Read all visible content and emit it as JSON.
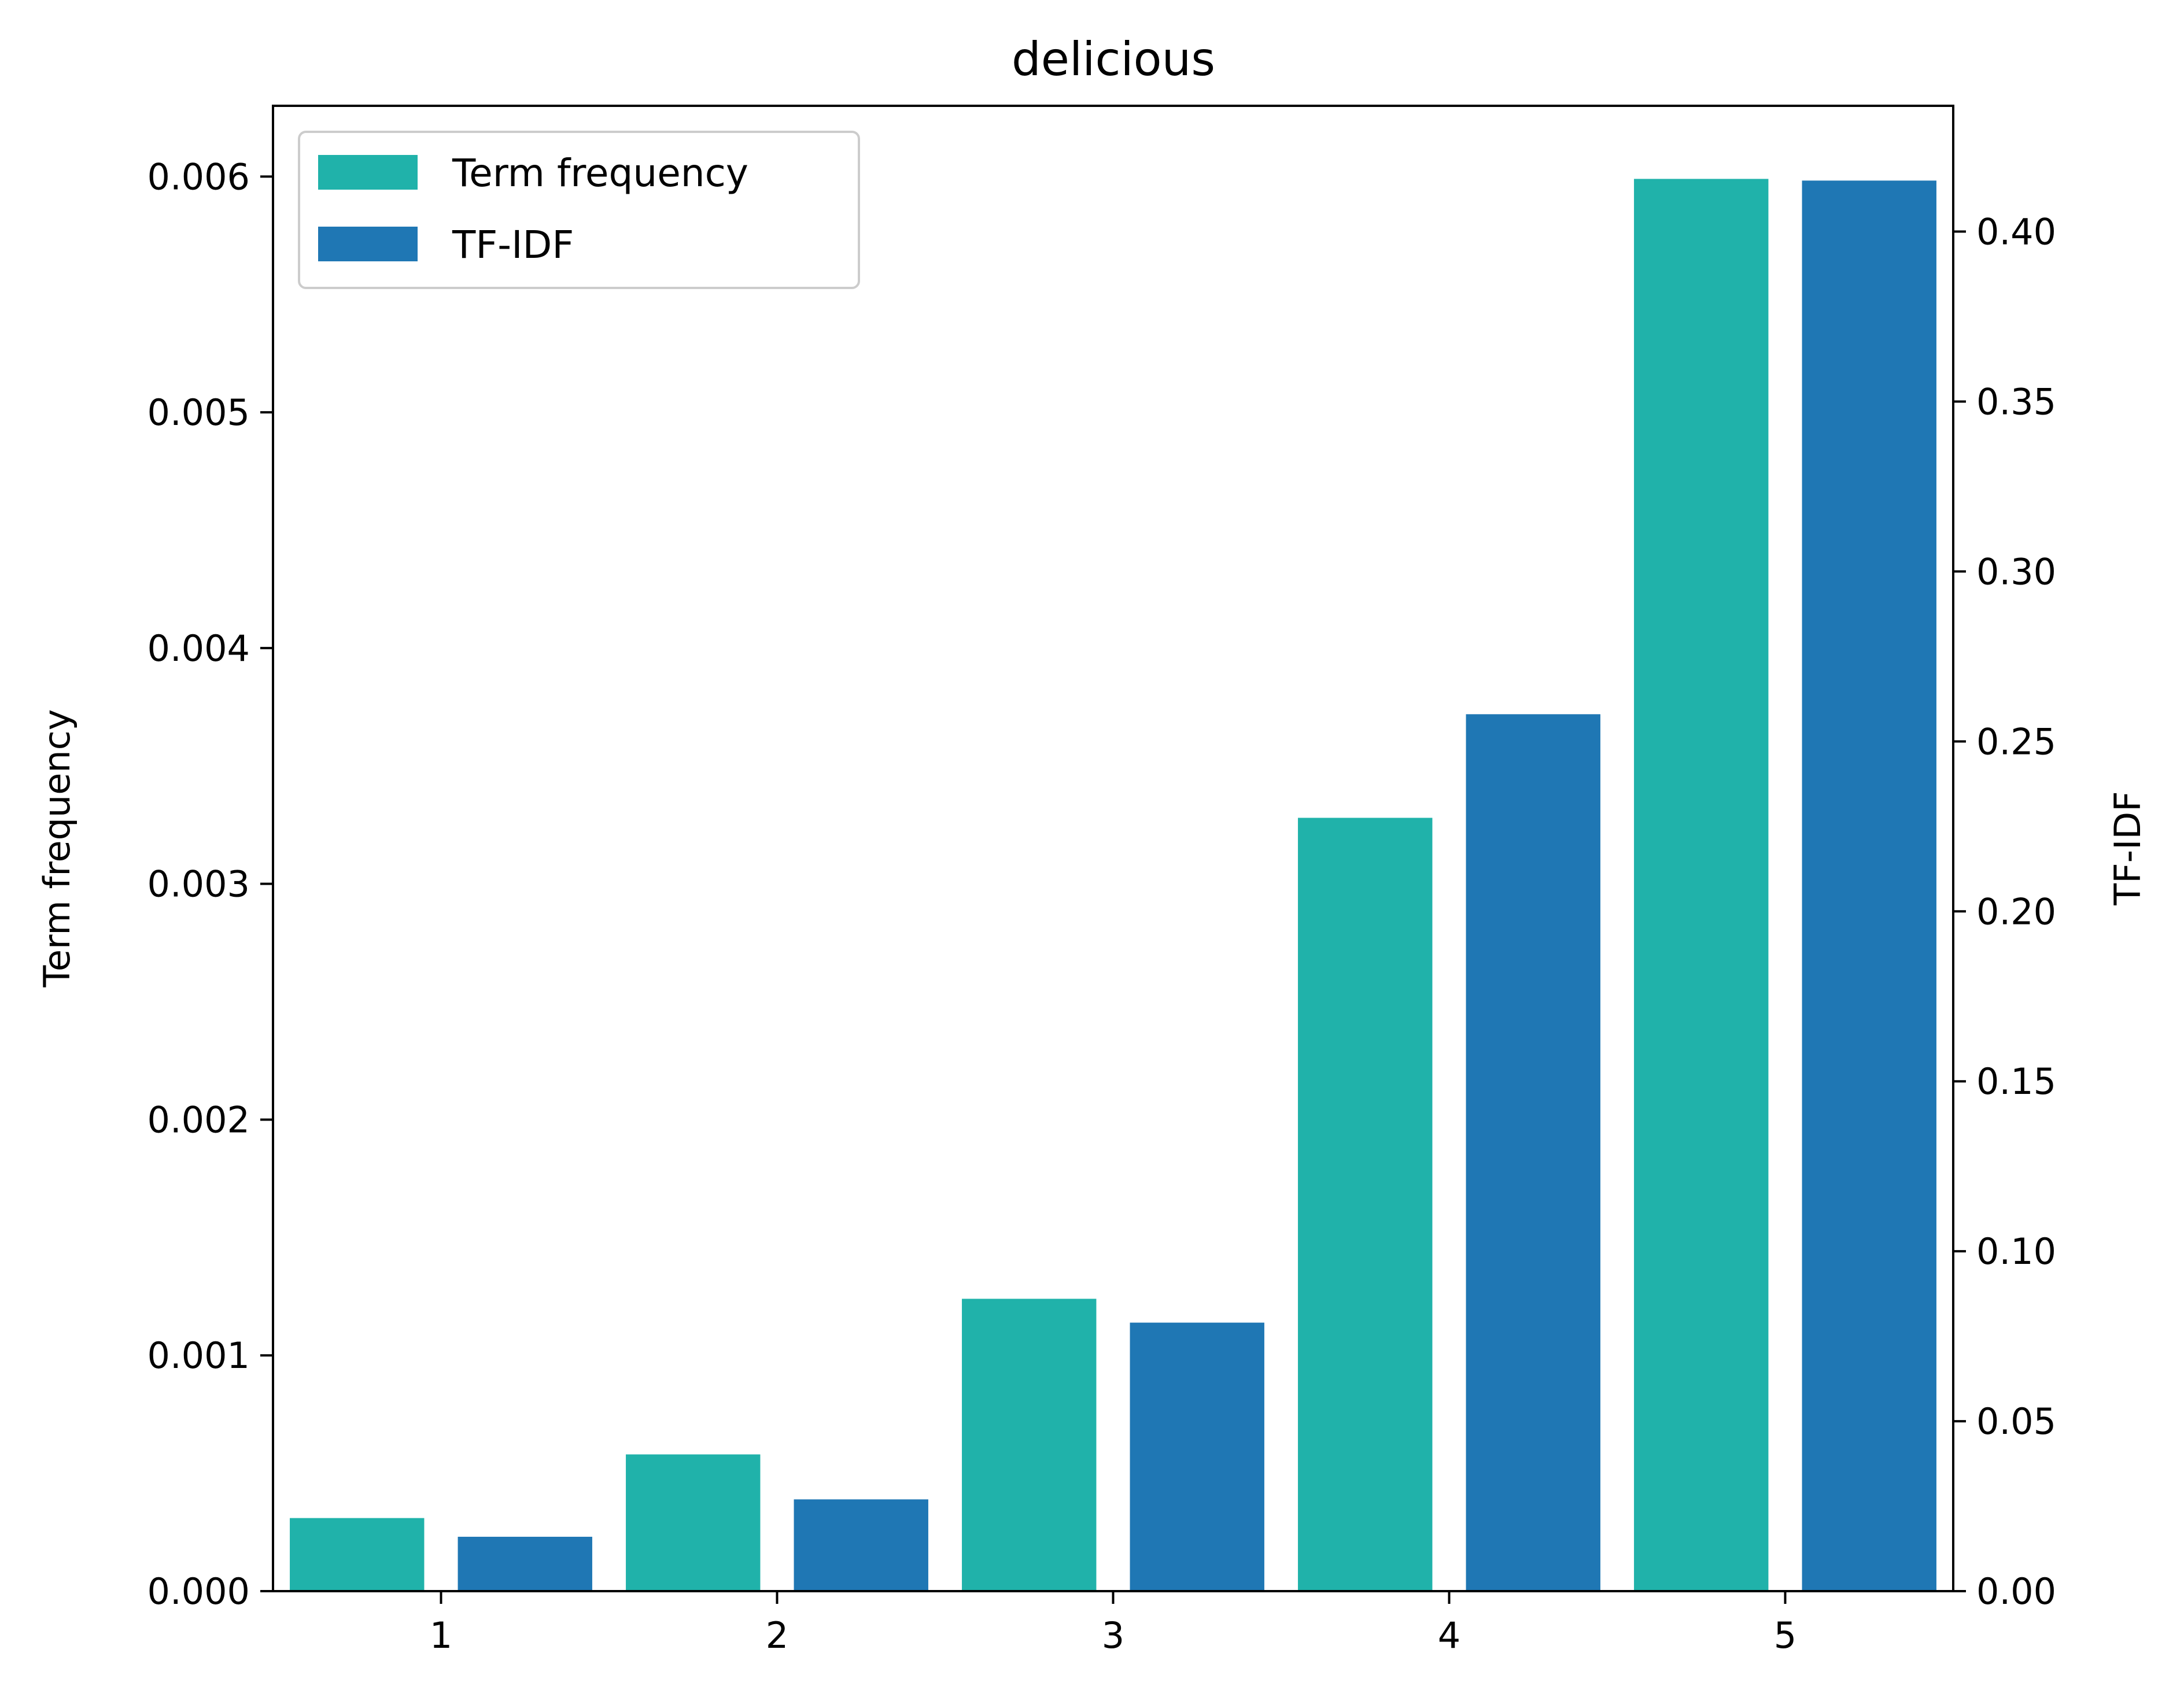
{
  "chart_data": {
    "type": "bar",
    "title": "delicious",
    "xlabel": "",
    "ylabel": "Term frequency",
    "y2label": "TF-IDF",
    "categories": [
      "1",
      "2",
      "3",
      "4",
      "5"
    ],
    "xlim": [
      0.5,
      5.5
    ],
    "ylim": [
      0,
      0.0063
    ],
    "y2lim": [
      0,
      0.437
    ],
    "yticks": [
      "0.000",
      "0.001",
      "0.002",
      "0.003",
      "0.004",
      "0.005",
      "0.006"
    ],
    "y2ticks": [
      "0.00",
      "0.05",
      "0.10",
      "0.15",
      "0.20",
      "0.25",
      "0.30",
      "0.35",
      "0.40"
    ],
    "series": [
      {
        "name": "Term frequency",
        "axis": "left",
        "color": "#20b2aa",
        "values": [
          0.00031,
          0.00058,
          0.00124,
          0.00328,
          0.00599
        ]
      },
      {
        "name": "TF-IDF",
        "axis": "right",
        "color": "#1f77b4",
        "values": [
          0.016,
          0.027,
          0.079,
          0.258,
          0.415
        ]
      }
    ],
    "legend": "top-left",
    "grid": false
  }
}
